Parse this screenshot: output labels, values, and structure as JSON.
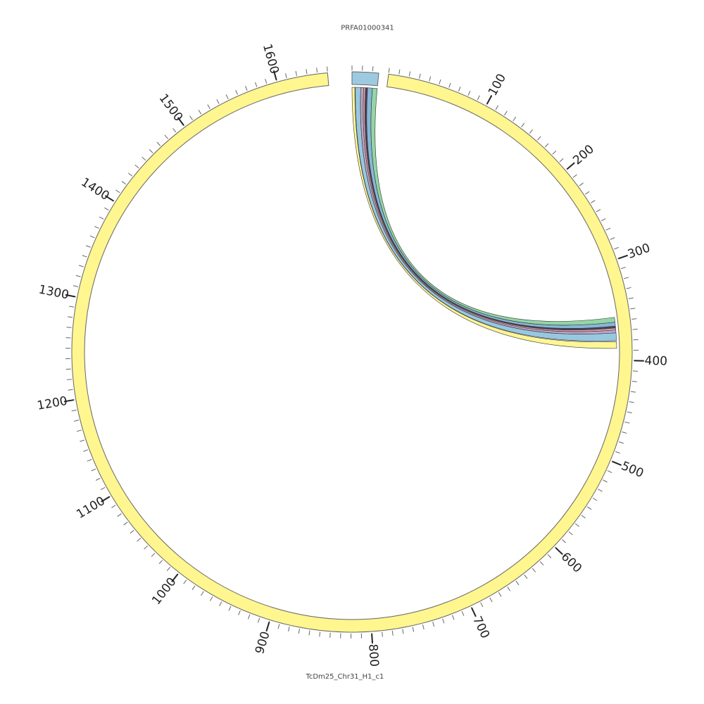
{
  "chart_data": {
    "type": "chord",
    "segments": [
      {
        "name": "PRFA01000341",
        "length": 26,
        "color": "#9ecae1"
      },
      {
        "name": "TcDm25_Chr31_H1_c1",
        "length": 1650,
        "color": "#fff68f"
      }
    ],
    "ticks": [
      {
        "segment": 1,
        "values": [
          100,
          200,
          300,
          400,
          500,
          600,
          700,
          800,
          900,
          1000,
          1100,
          1200,
          1300,
          1400,
          1500,
          1600
        ]
      }
    ],
    "minor_tick_step": 10,
    "links": [
      {
        "source": [
          0,
          3
        ],
        "target": [
          381,
          388
        ],
        "color": "#fff68f"
      },
      {
        "source": [
          3.5,
          9
        ],
        "target": [
          372,
          380
        ],
        "color": "#92c5de"
      },
      {
        "source": [
          9,
          12
        ],
        "target": [
          369,
          372
        ],
        "color": "#b3a2c7"
      },
      {
        "source": [
          12,
          14
        ],
        "target": [
          367,
          369
        ],
        "color": "#e7969c"
      },
      {
        "source": [
          14,
          16
        ],
        "target": [
          365,
          367
        ],
        "color": "#3a3a5a"
      },
      {
        "source": [
          16,
          21
        ],
        "target": [
          361,
          365
        ],
        "color": "#7fb3d5"
      },
      {
        "source": [
          21,
          26
        ],
        "target": [
          356,
          361
        ],
        "color": "#8ed3a0"
      }
    ]
  }
}
